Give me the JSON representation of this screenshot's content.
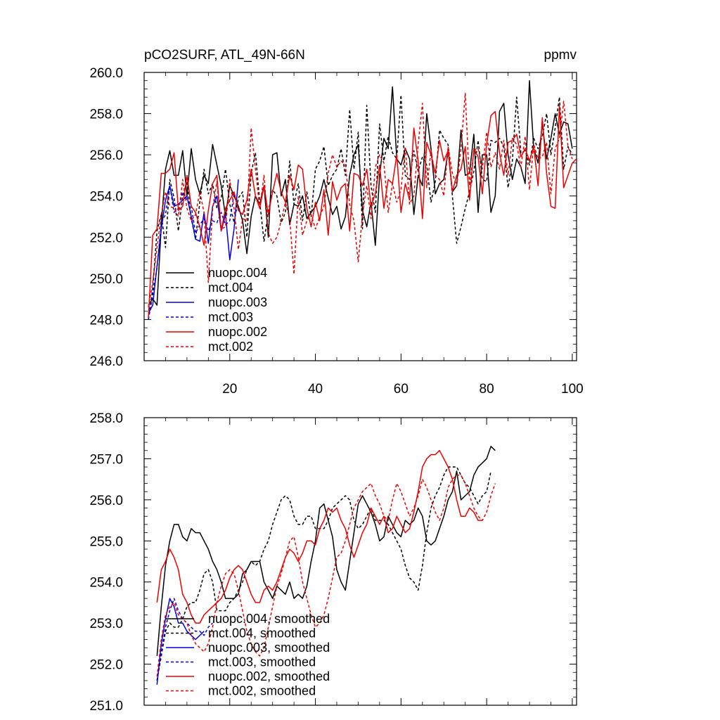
{
  "chart_data": [
    {
      "type": "line",
      "title": "pCO2SURF, ATL_49N-66N",
      "units": "ppmv",
      "xlabel": "",
      "ylabel": "",
      "xlim": [
        0,
        101
      ],
      "ylim": [
        246,
        260
      ],
      "xticks": [
        20,
        40,
        60,
        80,
        100
      ],
      "yticks": [
        246,
        248,
        250,
        252,
        254,
        256,
        258,
        260
      ],
      "ytick_labels": [
        "246.0",
        "248.0",
        "250.0",
        "252.0",
        "254.0",
        "256.0",
        "258.0",
        "260.0"
      ],
      "legend_position": "bottom-left",
      "series": [
        {
          "name": "nuopc.004",
          "color": "#000000",
          "dash": "solid",
          "x_start": 1,
          "values": [
            248.7,
            249.0,
            248.7,
            252.6,
            255.3,
            256.2,
            255.0,
            255.0,
            256.2,
            254.0,
            256.3,
            254.8,
            254.1,
            255.0,
            254.6,
            256.5,
            255.5,
            254.5,
            253.0,
            254.5,
            254.0,
            253.5,
            252.8,
            251.2,
            253.0,
            254.0,
            253.6,
            254.5,
            252.0,
            256.0,
            256.1,
            254.0,
            254.8,
            252.6,
            253.6,
            253.5,
            254.0,
            252.9,
            253.2,
            253.5,
            254.0,
            254.8,
            253.9,
            253.1,
            253.5,
            252.4,
            253.0,
            255.0,
            256.0,
            256.5,
            253.3,
            252.5,
            253.7,
            251.6,
            255.0,
            256.8,
            256.3,
            259.3,
            255.8,
            255.5,
            256.3,
            255.8,
            253.1,
            255.0,
            254.5,
            258.0,
            256.3,
            254.1,
            254.6,
            254.8,
            256.2,
            254.2,
            254.5,
            257.2,
            255.0,
            255.1,
            257.0,
            253.2,
            256.0,
            256.0,
            253.2,
            254.0,
            258.1,
            258.5,
            256.0,
            254.8,
            255.8,
            255.4,
            254.6,
            259.6,
            256.3,
            255.6,
            257.5,
            255.8,
            256.8,
            258.0,
            257.0,
            257.6,
            257.5,
            256.3
          ]
        },
        {
          "name": "mct.004",
          "color": "#000000",
          "dash": "dashed",
          "x_start": 1,
          "values": [
            248.0,
            249.5,
            252.3,
            253.1,
            251.5,
            254.8,
            253.9,
            252.3,
            254.0,
            254.7,
            252.9,
            251.9,
            253.7,
            255.3,
            254.1,
            254.6,
            253.4,
            253.9,
            255.3,
            253.6,
            252.7,
            253.9,
            254.2,
            252.0,
            255.1,
            256.1,
            253.7,
            251.8,
            253.2,
            254.3,
            254.0,
            252.7,
            253.2,
            255.7,
            253.6,
            254.6,
            252.8,
            254.2,
            253.0,
            255.3,
            255.7,
            256.4,
            254.5,
            255.0,
            255.3,
            256.3,
            255.0,
            258.2,
            255.3,
            257.1,
            252.4,
            258.4,
            254.5,
            253.2,
            257.5,
            255.7,
            256.9,
            256.1,
            255.8,
            258.9,
            255.0,
            254.8,
            256.2,
            255.2,
            255.9,
            255.5,
            253.7,
            254.7,
            257.2,
            256.8,
            256.5,
            254.0,
            251.7,
            252.5,
            253.4,
            254.2,
            255.2,
            256.7,
            254.8,
            254.7,
            256.7,
            256.6,
            256.8,
            256.4,
            254.4,
            255.7,
            258.8,
            256.1,
            256.2,
            255.5,
            256.8,
            256.3,
            256.9,
            258.0,
            256.0,
            257.3,
            258.8,
            255.3,
            256.4,
            256.0
          ]
        },
        {
          "name": "nuopc.003",
          "color": "#0000dd",
          "dash": "solid",
          "x_start": 1,
          "values": [
            248.3,
            248.7,
            250.6,
            252.4,
            253.8,
            254.5,
            253.5,
            253.6,
            253.8,
            254.0,
            253.0,
            251.9,
            251.8,
            253.2,
            251.7,
            253.5,
            254.0,
            252.3,
            253.1,
            250.9,
            252.4,
            254.8
          ]
        },
        {
          "name": "mct.003",
          "color": "#0000dd",
          "dash": "dashed",
          "x_start": 1,
          "values": [
            248.0,
            249.2,
            250.5,
            252.7,
            253.1,
            254.5,
            253.2,
            253.4,
            254.2,
            253.8,
            253.5,
            252.2,
            252.6,
            252.9,
            252.3,
            252.8,
            252.7,
            253.2,
            252.6,
            252.8,
            254.1
          ]
        },
        {
          "name": "nuopc.002",
          "color": "#ee0000",
          "dash": "solid",
          "x_start": 1,
          "values": [
            248.1,
            252.1,
            252.4,
            255.1,
            255.1,
            255.3,
            256.1,
            253.3,
            253.5,
            255.0,
            253.5,
            253.2,
            252.5,
            251.6,
            253.3,
            254.6,
            255.0,
            252.3,
            253.4,
            253.8,
            254.2,
            253.3,
            253.1,
            253.8,
            255.3,
            254.0,
            253.4,
            254.5,
            253.1,
            254.2,
            255.1,
            254.2,
            253.7,
            255.0,
            254.3,
            255.5,
            255.3,
            253.4,
            252.5,
            253.7,
            252.8,
            254.3,
            252.1,
            254.7,
            253.8,
            254.4,
            254.6,
            252.3,
            255.1,
            255.0,
            254.5,
            255.3,
            253.5,
            254.1,
            255.5,
            253.4,
            254.8,
            254.6,
            256.0,
            253.2,
            254.6,
            253.8,
            257.3,
            255.7,
            252.9,
            256.6,
            256.0,
            255.1,
            256.7,
            255.7,
            256.2,
            254.2,
            255.0,
            255.3,
            256.4,
            253.8,
            256.3,
            255.9,
            254.1,
            256.5,
            257.9,
            258.1,
            256.1,
            255.0,
            256.6,
            256.7,
            257.0,
            255.9,
            256.3,
            255.7,
            256.4,
            254.5,
            257.8,
            255.1,
            253.5,
            253.4,
            258.4,
            254.4,
            255.0,
            255.6,
            255.8
          ]
        },
        {
          "name": "mct.002",
          "color": "#ee0000",
          "dash": "dashed",
          "x_start": 1,
          "values": [
            248.6,
            249.8,
            251.5,
            253.1,
            254.2,
            253.5,
            253.4,
            253.0,
            254.8,
            253.4,
            252.8,
            253.1,
            254.2,
            253.2,
            249.8,
            253.4,
            254.7,
            252.4,
            252.5,
            254.8,
            253.4,
            251.4,
            252.9,
            252.8,
            257.3,
            255.3,
            253.4,
            255.0,
            252.2,
            251.7,
            252.0,
            252.8,
            253.7,
            252.9,
            250.2,
            254.0,
            252.1,
            252.8,
            253.1,
            252.4,
            253.0,
            253.5,
            255.1,
            256.0,
            255.4,
            255.7,
            255.5,
            253.6,
            252.8,
            250.8,
            253.1,
            254.5,
            252.9,
            255.4,
            256.0,
            255.6,
            253.2,
            254.6,
            253.7,
            254.3,
            256.4,
            253.6,
            254.0,
            256.5,
            258.5,
            254.4,
            256.2,
            255.0,
            254.8,
            254.0,
            256.4,
            255.1,
            254.5,
            256.3,
            259.0,
            254.5,
            256.2,
            256.3,
            255.3,
            257.1,
            255.4,
            256.1,
            255.3,
            256.7,
            255.0,
            256.8,
            256.5,
            255.4,
            256.9,
            254.3,
            256.5,
            255.8,
            255.9,
            256.6,
            254.1,
            256.3,
            256.8,
            258.6,
            256.4,
            255.8
          ]
        }
      ]
    },
    {
      "type": "line",
      "title": "",
      "xlabel": "",
      "ylabel": "",
      "xlim": [
        0,
        101
      ],
      "ylim": [
        251,
        258
      ],
      "xticks": [
        20,
        40,
        60,
        80,
        100
      ],
      "yticks": [
        251,
        252,
        253,
        254,
        255,
        256,
        257,
        258
      ],
      "ytick_labels": [
        "251.0",
        "252.0",
        "253.0",
        "254.0",
        "255.0",
        "256.0",
        "257.0",
        "258.0"
      ],
      "legend_position": "bottom-left",
      "series": [
        {
          "name": "nuopc.004, smoothed",
          "color": "#000000",
          "dash": "solid",
          "x_start": 3,
          "values": [
            252.2,
            253.4,
            254.4,
            255.0,
            255.4,
            255.4,
            255.1,
            255.0,
            255.3,
            255.2,
            255.2,
            255.0,
            254.8,
            254.5,
            254.3,
            254.0,
            253.6,
            253.6,
            253.6,
            253.7,
            254.2,
            254.3,
            254.5,
            254.5,
            254.5,
            254.0,
            253.8,
            253.6,
            253.9,
            253.8,
            253.7,
            254.0,
            253.6,
            253.7,
            253.6,
            253.9,
            254.5,
            255.0,
            255.8,
            255.9,
            255.5,
            255.1,
            254.3,
            254.0,
            253.8,
            254.5,
            255.2,
            255.9,
            256.1,
            255.9,
            255.7,
            255.4,
            255.0,
            255.1,
            255.6,
            255.4,
            255.2,
            255.1,
            255.5,
            255.4,
            255.5,
            255.8,
            255.6,
            255.0,
            254.9,
            255.0,
            255.3,
            255.6,
            256.0,
            256.2,
            256.7,
            256.0,
            256.1,
            256.2,
            256.6,
            256.8,
            256.9,
            257.0,
            257.3,
            257.2
          ]
        },
        {
          "name": "mct.004, smoothed",
          "color": "#000000",
          "dash": "dashed",
          "x_start": 3,
          "values": [
            251.6,
            252.2,
            252.8,
            253.0,
            252.9,
            252.9,
            253.1,
            253.4,
            253.5,
            253.5,
            253.8,
            254.2,
            254.3,
            254.0,
            253.3,
            253.3,
            253.3,
            253.5,
            253.6,
            253.8,
            254.0,
            254.3,
            254.5,
            254.4,
            254.5,
            254.8,
            255.0,
            255.4,
            255.7,
            256.0,
            256.1,
            256.0,
            255.6,
            255.4,
            255.4,
            255.6,
            255.6,
            255.3,
            255.3,
            255.3,
            255.5,
            255.8,
            255.9,
            256.0,
            256.1,
            256.0,
            255.5,
            255.3,
            255.4,
            255.6,
            255.8,
            255.5,
            255.5,
            255.5,
            255.4,
            255.2,
            255.0,
            254.8,
            254.4,
            254.1,
            254.0,
            253.8,
            254.4,
            255.2,
            255.8,
            256.1,
            256.3,
            256.6,
            256.8,
            256.8,
            256.8,
            256.6,
            256.4,
            256.3,
            256.1,
            255.9,
            256.1,
            256.2,
            256.7
          ]
        },
        {
          "name": "nuopc.003, smoothed",
          "color": "#0000dd",
          "dash": "solid",
          "x_start": 3,
          "values": [
            251.5,
            252.5,
            253.1,
            253.6,
            253.4,
            253.0,
            253.0,
            252.8,
            252.7,
            252.6,
            252.7,
            252.8
          ]
        },
        {
          "name": "mct.003, smoothed",
          "color": "#0000dd",
          "dash": "dashed",
          "x_start": 3,
          "values": [
            251.6,
            252.3,
            252.9,
            253.3,
            253.6,
            253.3,
            253.1,
            253.0,
            252.9,
            252.8,
            252.8,
            252.7,
            252.9,
            253.0
          ]
        },
        {
          "name": "nuopc.002, smoothed",
          "color": "#ee0000",
          "dash": "solid",
          "x_start": 3,
          "values": [
            253.5,
            254.3,
            254.5,
            254.8,
            254.6,
            254.3,
            253.7,
            253.5,
            253.2,
            253.0,
            253.0,
            253.2,
            253.3,
            253.4,
            253.5,
            253.6,
            253.8,
            254.1,
            254.3,
            254.4,
            254.3,
            254.0,
            253.7,
            253.5,
            253.5,
            253.8,
            253.9,
            253.8,
            254.0,
            254.3,
            254.6,
            254.8,
            254.7,
            254.5,
            254.7,
            255.0,
            255.0,
            254.9,
            255.3,
            255.5,
            255.8,
            255.7,
            255.8,
            255.5,
            255.3,
            254.9,
            254.6,
            254.9,
            255.2,
            255.4,
            255.8,
            255.6,
            255.4,
            255.6,
            255.2,
            255.3,
            255.6,
            255.4,
            255.2,
            255.3,
            255.7,
            256.2,
            256.8,
            257.0,
            257.1,
            257.1,
            257.2,
            257.0,
            256.8,
            256.5,
            256.0,
            255.6,
            255.6,
            255.8,
            255.7,
            255.5,
            255.5
          ]
        },
        {
          "name": "mct.002, smoothed",
          "color": "#ee0000",
          "dash": "dashed",
          "x_start": 3,
          "values": [
            251.7,
            252.6,
            253.2,
            253.4,
            253.5,
            253.2,
            253.1,
            253.0,
            252.7,
            252.5,
            252.4,
            252.3,
            252.5,
            252.9,
            253.5,
            253.9,
            254.2,
            254.3,
            254.2,
            253.8,
            253.3,
            252.8,
            252.5,
            252.3,
            252.2,
            252.4,
            252.9,
            253.4,
            253.9,
            254.2,
            254.6,
            255.0,
            255.1,
            254.6,
            254.0,
            253.6,
            253.2,
            252.9,
            253.0,
            253.2,
            253.6,
            254.1,
            254.6,
            254.7,
            255.0,
            255.4,
            255.8,
            256.0,
            256.2,
            256.3,
            256.4,
            256.1,
            255.9,
            255.6,
            255.5,
            256.0,
            256.4,
            256.2,
            255.9,
            255.6,
            255.8,
            256.1,
            256.5,
            256.3,
            256.0,
            255.7,
            255.5,
            255.8,
            256.3,
            256.5,
            256.6,
            256.6,
            256.4,
            256.1,
            255.8,
            255.6,
            255.5,
            255.7,
            256.1,
            256.4
          ]
        }
      ]
    }
  ]
}
